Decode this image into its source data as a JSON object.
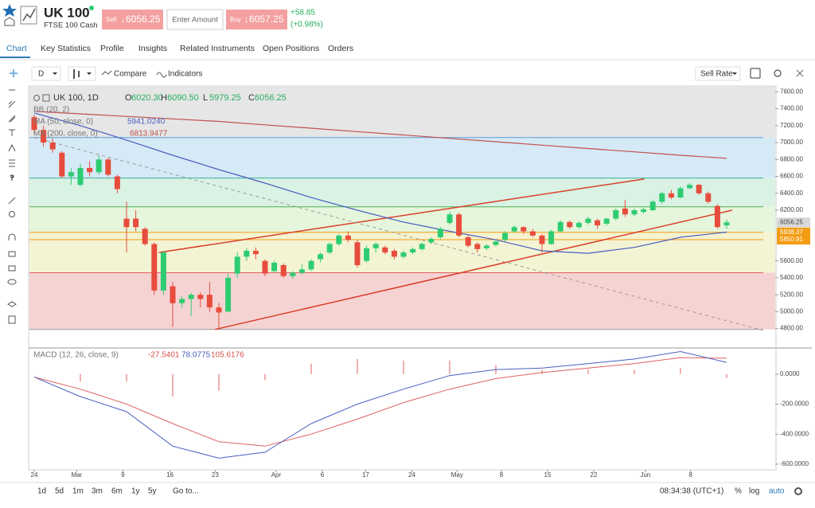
{
  "header": {
    "instrument": "UK 100",
    "subtitle": "FTSE 100 Cash",
    "sell_label": "Sell",
    "sell_price": "6056.25",
    "amount_placeholder": "Enter Amount",
    "buy_label": "Buy",
    "buy_price": "6057.25",
    "change": "+58.85",
    "change_percent": "(+0.98%)"
  },
  "tabs": [
    "Chart",
    "Key Statistics",
    "Profile",
    "Insights",
    "Related Instruments",
    "Open Positions",
    "Orders"
  ],
  "toolbar": {
    "interval": "D",
    "compare": "Compare",
    "indicators": "Indicators",
    "rate": "Sell Rate"
  },
  "chart": {
    "type": "candlestick",
    "legend": {
      "series": "UK 100, 1D",
      "ohlc_letters": [
        "O",
        "H",
        "L",
        "C"
      ],
      "ohlc_values": [
        "6020.30",
        "6090.50",
        "5979.25",
        "6056.25"
      ],
      "bb": "BB (20, 2)",
      "ma50": "MA (50, close, 0)",
      "ma50_value": "5941.0240",
      "ma200": "MA (200, close, 0)",
      "ma200_value": "6813.9477"
    },
    "ylim": [
      4740,
      7660
    ],
    "yticks": [
      {
        "value": 7600,
        "label": "7600.00"
      },
      {
        "value": 7400,
        "label": "7400.00"
      },
      {
        "value": 7200,
        "label": "7200.00"
      },
      {
        "value": 7000,
        "label": "7000.00"
      },
      {
        "value": 6800,
        "label": "6800.00"
      },
      {
        "value": 6600,
        "label": "6600.00"
      },
      {
        "value": 6400,
        "label": "6400.00"
      },
      {
        "value": 6200,
        "label": "6200.00"
      },
      {
        "value": 5600,
        "label": "5600.00"
      },
      {
        "value": 5400,
        "label": "5400.00"
      },
      {
        "value": 5200,
        "label": "5200.00"
      },
      {
        "value": 5000,
        "label": "5000.00"
      },
      {
        "value": 4800,
        "label": "4800.00"
      }
    ],
    "xlabels": [
      "24",
      "Mar",
      "9",
      "16",
      "23",
      "Apr",
      "6",
      "17",
      "24",
      "May",
      "8",
      "15",
      "22",
      "Jun",
      "8"
    ],
    "xlabel_positions": [
      0,
      4.6,
      9.6,
      14.7,
      19.6,
      26.2,
      31.2,
      35.9,
      40.9,
      45.8,
      50.6,
      55.6,
      60.6,
      66.2,
      71.1
    ],
    "up_color": "#2ecc71",
    "down_color": "#e74c3c",
    "candles": [
      [
        7300,
        7330,
        7100,
        7150
      ],
      [
        7150,
        7200,
        6950,
        7000
      ],
      [
        7000,
        7050,
        6880,
        6920
      ],
      [
        6880,
        6900,
        6580,
        6600
      ],
      [
        6600,
        6700,
        6500,
        6650
      ],
      [
        6500,
        6750,
        6480,
        6700
      ],
      [
        6700,
        6780,
        6600,
        6650
      ],
      [
        6650,
        6850,
        6620,
        6800
      ],
      [
        6800,
        6820,
        6600,
        6620
      ],
      [
        6600,
        6620,
        6400,
        6450
      ],
      [
        6100,
        6300,
        5700,
        6000
      ],
      [
        6100,
        6200,
        5950,
        6000
      ],
      [
        5980,
        6000,
        5780,
        5800
      ],
      [
        5800,
        5820,
        5200,
        5250
      ],
      [
        5250,
        5720,
        5200,
        5700
      ],
      [
        5300,
        5350,
        4820,
        5100
      ],
      [
        5100,
        5180,
        5050,
        5150
      ],
      [
        5150,
        5220,
        4950,
        5200
      ],
      [
        5200,
        5230,
        5050,
        5150
      ],
      [
        5200,
        5350,
        5000,
        5050
      ],
      [
        5050,
        5100,
        4790,
        4990
      ],
      [
        5000,
        5450,
        4990,
        5400
      ],
      [
        5450,
        5700,
        5400,
        5650
      ],
      [
        5650,
        5750,
        5600,
        5720
      ],
      [
        5720,
        5760,
        5620,
        5680
      ],
      [
        5600,
        5620,
        5420,
        5450
      ],
      [
        5480,
        5600,
        5460,
        5580
      ],
      [
        5550,
        5570,
        5400,
        5420
      ],
      [
        5420,
        5480,
        5390,
        5460
      ],
      [
        5460,
        5560,
        5440,
        5500
      ],
      [
        5500,
        5620,
        5480,
        5600
      ],
      [
        5620,
        5700,
        5580,
        5680
      ],
      [
        5700,
        5820,
        5680,
        5800
      ],
      [
        5800,
        5920,
        5780,
        5900
      ],
      [
        5900,
        5950,
        5820,
        5850
      ],
      [
        5820,
        5850,
        5520,
        5550
      ],
      [
        5600,
        5780,
        5580,
        5750
      ],
      [
        5750,
        5820,
        5700,
        5800
      ],
      [
        5760,
        5780,
        5680,
        5700
      ],
      [
        5720,
        5740,
        5620,
        5650
      ],
      [
        5650,
        5720,
        5630,
        5700
      ],
      [
        5700,
        5760,
        5680,
        5740
      ],
      [
        5740,
        5820,
        5720,
        5800
      ],
      [
        5820,
        5880,
        5800,
        5860
      ],
      [
        5880,
        6000,
        5860,
        5980
      ],
      [
        6050,
        6180,
        6030,
        6150
      ],
      [
        6150,
        6170,
        5880,
        5900
      ],
      [
        5880,
        5900,
        5760,
        5780
      ],
      [
        5800,
        5820,
        5700,
        5740
      ],
      [
        5750,
        5800,
        5730,
        5780
      ],
      [
        5790,
        5840,
        5770,
        5830
      ],
      [
        5850,
        5950,
        5830,
        5930
      ],
      [
        5950,
        6020,
        5930,
        6000
      ],
      [
        6000,
        6010,
        5920,
        5950
      ],
      [
        5950,
        5980,
        5880,
        5900
      ],
      [
        5900,
        5920,
        5700,
        5800
      ],
      [
        5800,
        5970,
        5790,
        5950
      ],
      [
        5950,
        6080,
        5940,
        6060
      ],
      [
        6060,
        6080,
        5980,
        6000
      ],
      [
        6000,
        6070,
        5980,
        6050
      ],
      [
        6050,
        6120,
        6030,
        6100
      ],
      [
        6080,
        6100,
        5980,
        6020
      ],
      [
        6040,
        6110,
        6020,
        6100
      ],
      [
        6100,
        6220,
        6080,
        6200
      ],
      [
        6220,
        6320,
        6120,
        6150
      ],
      [
        6150,
        6220,
        6130,
        6200
      ],
      [
        6180,
        6230,
        6160,
        6210
      ],
      [
        6200,
        6320,
        6190,
        6300
      ],
      [
        6300,
        6420,
        6280,
        6400
      ],
      [
        6400,
        6440,
        6330,
        6350
      ],
      [
        6350,
        6480,
        6340,
        6460
      ],
      [
        6460,
        6520,
        6450,
        6500
      ],
      [
        6500,
        6510,
        6380,
        6400
      ],
      [
        6400,
        6420,
        6280,
        6300
      ],
      [
        6250,
        6270,
        5980,
        6000
      ],
      [
        6020.3,
        6090.5,
        5979.25,
        6056.25
      ]
    ],
    "ma50": {
      "color": "#4a5fc1",
      "x": [
        0,
        5,
        10,
        15,
        20,
        25,
        30,
        35,
        40,
        45,
        50,
        55,
        60,
        65,
        70,
        75
      ],
      "values": [
        7350,
        7200,
        7030,
        6850,
        6680,
        6520,
        6350,
        6200,
        6060,
        5950,
        5850,
        5720,
        5690,
        5760,
        5880,
        5941.024
      ]
    },
    "ma200": {
      "color": "#c0504d",
      "x": [
        0,
        5,
        10,
        15,
        20,
        25,
        30,
        35,
        40,
        45,
        50,
        55,
        60,
        65,
        70,
        75
      ],
      "values": [
        7370,
        7340,
        7310,
        7280,
        7250,
        7210,
        7170,
        7130,
        7090,
        7050,
        7010,
        6970,
        6930,
        6890,
        6850,
        6813.9477
      ]
    },
    "levels": [
      7060,
      6580,
      6240,
      5938.37,
      5850.91,
      5460,
      4790
    ],
    "level_colors": [
      "#5b9bd5",
      "#3bb0a0",
      "#4caf50",
      "#f39c12",
      "#f39c12",
      "#e06060",
      "#999999"
    ],
    "zone_colors": [
      "#e6e6e6",
      "#d6e9f6",
      "#d9f2e4",
      "#e6f6dc",
      "#f5f3d0",
      "#f3f4d4",
      "#f6d3d3"
    ],
    "trendlines": [
      {
        "from": [
          13.5,
          5700
        ],
        "to": [
          66.1,
          6570
        ],
        "color": "#d9402b",
        "dashed": false
      },
      {
        "from": [
          19.6,
          4790
        ],
        "to": [
          75.6,
          6200
        ],
        "color": "#d9402b",
        "dashed": false
      },
      {
        "from": [
          0,
          7060
        ],
        "to": [
          78.9,
          4780
        ],
        "color": "#999999",
        "dashed": true
      }
    ],
    "price_tags": [
      6056.25,
      5938.37,
      5850.91
    ],
    "price_tag_colors": [
      "#d8d8d8",
      "#f39c12",
      "#f39c12"
    ],
    "macd": {
      "legend": {
        "name": "MACD (12, 26, close, 9)",
        "hist": "-27.5401",
        "macd": "78.0775",
        "signal": "105.6176"
      },
      "ylim": [
        -632,
        158
      ],
      "yticks": [
        {
          "value": 0,
          "label": "0.0000"
        },
        {
          "value": -200,
          "label": "-200.0000"
        },
        {
          "value": -400,
          "label": "-400.0000"
        },
        {
          "value": -600,
          "label": "-600.0000"
        }
      ],
      "x": [
        0,
        5,
        10,
        15,
        20,
        25,
        30,
        35,
        40,
        45,
        50,
        55,
        60,
        65,
        70,
        75
      ],
      "macd": [
        -20,
        -150,
        -250,
        -480,
        -560,
        -520,
        -330,
        -200,
        -100,
        -10,
        30,
        40,
        70,
        100,
        150,
        78.0775
      ],
      "signal": [
        -20,
        -100,
        -200,
        -330,
        -450,
        -480,
        -400,
        -300,
        -190,
        -100,
        -30,
        10,
        40,
        70,
        110,
        105.6176
      ],
      "hist": [
        0,
        -50,
        -50,
        -150,
        -110,
        -40,
        70,
        100,
        90,
        90,
        60,
        30,
        30,
        30,
        40,
        -27.5401
      ],
      "macd_color": "#4a5fc1",
      "signal_color": "#e06060",
      "hist_color": "#e06060"
    }
  },
  "bottom_bar": {
    "ranges": [
      "1d",
      "5d",
      "1m",
      "3m",
      "6m",
      "1y",
      "5y",
      "Go to..."
    ],
    "clock": "08:34:38 (UTC+1)",
    "percent": "%",
    "log": "log",
    "auto": "auto"
  }
}
